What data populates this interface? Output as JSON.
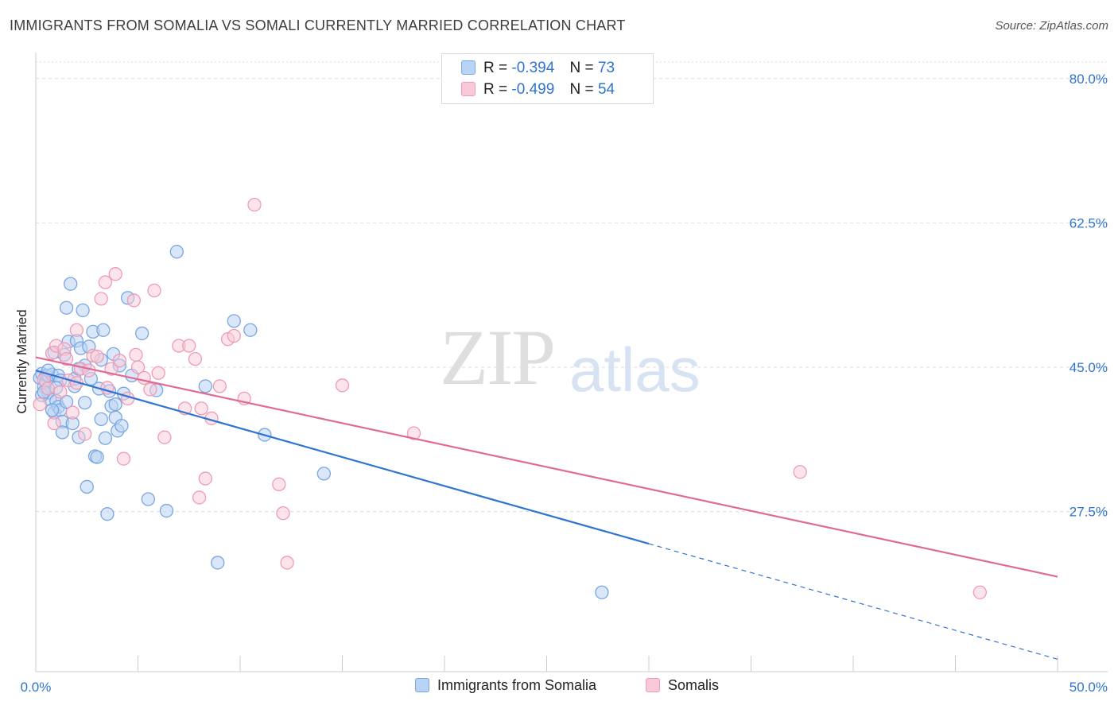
{
  "title": "IMMIGRANTS FROM SOMALIA VS SOMALI CURRENTLY MARRIED CORRELATION CHART",
  "source": "Source: ZipAtlas.com",
  "watermark": {
    "zip": "ZIP",
    "atlas": "atlas"
  },
  "legend": {
    "r_label": "R =",
    "n_label": "N =",
    "rows": [
      {
        "r": "-0.394",
        "n": "73"
      },
      {
        "r": "-0.499",
        "n": "54"
      }
    ]
  },
  "colors": {
    "blue_fill": "#b9d3f4",
    "blue_stroke": "#7aa6e0",
    "blue_line": "#2f74d0",
    "pink_fill": "#f9c9d8",
    "pink_stroke": "#ef9bb6",
    "pink_line": "#e06a96",
    "grid": "#dddddd",
    "tick_label": "#2f74d0"
  },
  "chart_data": {
    "type": "scatter",
    "title": "IMMIGRANTS FROM SOMALIA VS SOMALI CURRENTLY MARRIED CORRELATION CHART",
    "xlabel": "",
    "ylabel": "Currently Married",
    "xlim": [
      0,
      50
    ],
    "ylim": [
      10.5,
      82
    ],
    "x_tick_labels": [
      "0.0%",
      "50.0%"
    ],
    "y_ticks": [
      27.5,
      45.0,
      62.5,
      80.0
    ],
    "y_tick_labels": [
      "27.5%",
      "45.0%",
      "62.5%",
      "80.0%"
    ],
    "grid": true,
    "legend_position": "top-center",
    "series": [
      {
        "name": "Immigrants from Somalia",
        "r": -0.394,
        "n": 73,
        "trend": {
          "x0": 0,
          "y0": 44.6,
          "x1": 30,
          "y1": 23.6,
          "dash_to_x": 50,
          "dash_to_y": 9.6
        },
        "points": [
          [
            0.2,
            43.7
          ],
          [
            0.3,
            44.2
          ],
          [
            0.4,
            42.6
          ],
          [
            0.5,
            44.0
          ],
          [
            0.5,
            43.2
          ],
          [
            0.6,
            41.9
          ],
          [
            0.6,
            44.0
          ],
          [
            0.7,
            41.1
          ],
          [
            0.3,
            41.6
          ],
          [
            0.8,
            44.1
          ],
          [
            0.9,
            39.5
          ],
          [
            0.9,
            46.8
          ],
          [
            1.0,
            40.9
          ],
          [
            1.1,
            44.0
          ],
          [
            1.1,
            40.2
          ],
          [
            1.2,
            39.8
          ],
          [
            1.3,
            38.4
          ],
          [
            1.3,
            37.1
          ],
          [
            1.4,
            46.5
          ],
          [
            1.5,
            40.8
          ],
          [
            1.5,
            52.2
          ],
          [
            1.6,
            48.1
          ],
          [
            1.7,
            55.1
          ],
          [
            1.8,
            38.2
          ],
          [
            1.9,
            42.7
          ],
          [
            1.9,
            43.6
          ],
          [
            2.0,
            48.2
          ],
          [
            2.1,
            36.5
          ],
          [
            2.2,
            47.3
          ],
          [
            2.3,
            51.9
          ],
          [
            2.4,
            45.2
          ],
          [
            2.4,
            40.7
          ],
          [
            2.5,
            30.5
          ],
          [
            2.6,
            47.5
          ],
          [
            2.7,
            43.6
          ],
          [
            2.8,
            49.3
          ],
          [
            2.9,
            34.2
          ],
          [
            3.0,
            34.1
          ],
          [
            3.1,
            42.4
          ],
          [
            3.2,
            38.7
          ],
          [
            3.3,
            49.5
          ],
          [
            3.4,
            36.4
          ],
          [
            3.5,
            27.2
          ],
          [
            3.6,
            42.1
          ],
          [
            3.7,
            40.3
          ],
          [
            3.8,
            46.6
          ],
          [
            3.9,
            38.9
          ],
          [
            4.0,
            37.3
          ],
          [
            4.1,
            45.2
          ],
          [
            4.2,
            37.9
          ],
          [
            4.3,
            41.8
          ],
          [
            4.5,
            53.4
          ],
          [
            4.7,
            44.0
          ],
          [
            5.2,
            49.1
          ],
          [
            5.5,
            29.0
          ],
          [
            5.9,
            42.2
          ],
          [
            6.4,
            27.6
          ],
          [
            6.9,
            59.0
          ],
          [
            8.3,
            42.7
          ],
          [
            8.9,
            21.3
          ],
          [
            9.7,
            50.6
          ],
          [
            10.5,
            49.5
          ],
          [
            11.2,
            36.8
          ],
          [
            14.1,
            32.1
          ],
          [
            0.4,
            42.0
          ],
          [
            0.8,
            39.8
          ],
          [
            1.2,
            43.4
          ],
          [
            2.1,
            44.8
          ],
          [
            3.2,
            45.9
          ],
          [
            0.6,
            44.6
          ],
          [
            27.7,
            17.7
          ],
          [
            1.0,
            42.5
          ],
          [
            3.9,
            40.5
          ]
        ]
      },
      {
        "name": "Somalis",
        "r": -0.499,
        "n": 54,
        "trend": {
          "x0": 0,
          "y0": 46.2,
          "x1": 50,
          "y1": 19.6
        },
        "points": [
          [
            0.2,
            40.5
          ],
          [
            0.4,
            43.5
          ],
          [
            0.6,
            42.4
          ],
          [
            0.8,
            46.7
          ],
          [
            1.0,
            47.6
          ],
          [
            1.2,
            42.0
          ],
          [
            1.4,
            47.2
          ],
          [
            1.6,
            43.4
          ],
          [
            1.8,
            39.5
          ],
          [
            2.0,
            49.5
          ],
          [
            2.2,
            44.8
          ],
          [
            2.4,
            36.9
          ],
          [
            2.6,
            44.6
          ],
          [
            2.8,
            46.4
          ],
          [
            3.0,
            46.3
          ],
          [
            3.2,
            53.3
          ],
          [
            3.4,
            55.3
          ],
          [
            3.5,
            42.5
          ],
          [
            3.7,
            44.8
          ],
          [
            3.9,
            56.3
          ],
          [
            4.1,
            45.8
          ],
          [
            4.3,
            33.9
          ],
          [
            4.5,
            41.2
          ],
          [
            4.8,
            53.1
          ],
          [
            5.0,
            45.0
          ],
          [
            5.3,
            43.7
          ],
          [
            5.6,
            42.3
          ],
          [
            5.8,
            54.3
          ],
          [
            6.0,
            44.3
          ],
          [
            6.3,
            36.5
          ],
          [
            7.0,
            47.6
          ],
          [
            7.3,
            40.0
          ],
          [
            7.5,
            47.6
          ],
          [
            7.8,
            46.0
          ],
          [
            8.1,
            40.0
          ],
          [
            8.3,
            31.5
          ],
          [
            8.6,
            38.8
          ],
          [
            9.0,
            42.7
          ],
          [
            9.4,
            48.4
          ],
          [
            9.7,
            48.8
          ],
          [
            10.2,
            41.2
          ],
          [
            10.7,
            64.7
          ],
          [
            11.9,
            30.8
          ],
          [
            12.1,
            27.3
          ],
          [
            12.3,
            21.3
          ],
          [
            15.0,
            42.8
          ],
          [
            18.5,
            37.0
          ],
          [
            37.4,
            32.3
          ],
          [
            8.0,
            29.2
          ],
          [
            2.0,
            43.1
          ],
          [
            0.9,
            38.2
          ],
          [
            1.5,
            46.0
          ],
          [
            4.9,
            46.5
          ],
          [
            46.2,
            17.7
          ]
        ]
      }
    ]
  }
}
